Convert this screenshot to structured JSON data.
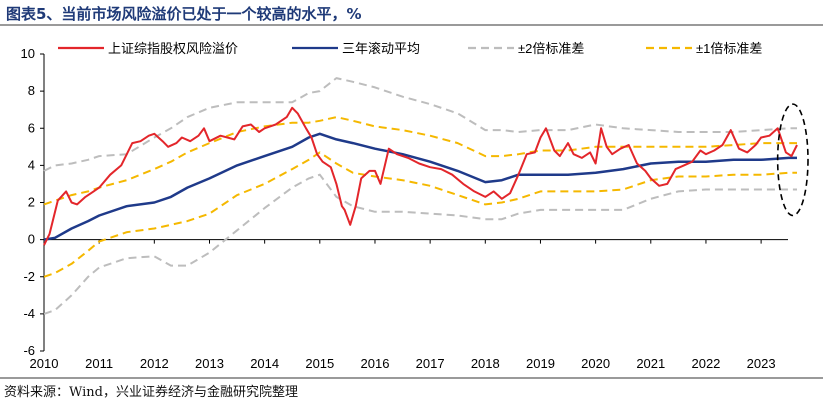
{
  "header": {
    "title": "图表5、当前市场风险溢价已处于一个较高的水平，%"
  },
  "footer": {
    "source": "资料来源：Wind，兴业证券经济与金融研究院整理"
  },
  "chart_data": {
    "type": "line",
    "title": "图表5、当前市场风险溢价已处于一个较高的水平，%",
    "xlabel": "",
    "ylabel": "",
    "xlim": [
      2010,
      2023.85
    ],
    "ylim": [
      -6,
      10
    ],
    "yticks": [
      -6,
      -4,
      -2,
      0,
      2,
      4,
      6,
      8,
      10
    ],
    "xticks": [
      2010,
      2011,
      2012,
      2013,
      2014,
      2015,
      2016,
      2017,
      2018,
      2019,
      2020,
      2021,
      2022,
      2023
    ],
    "grid": false,
    "legend": "top",
    "series": [
      {
        "name": "上证综指股权风险溢价",
        "color": "#e3262b",
        "style": "solid",
        "x": [
          2010.0,
          2010.1,
          2010.25,
          2010.4,
          2010.5,
          2010.6,
          2010.75,
          2010.9,
          2011.0,
          2011.2,
          2011.4,
          2011.6,
          2011.75,
          2011.9,
          2012.0,
          2012.15,
          2012.25,
          2012.4,
          2012.5,
          2012.65,
          2012.8,
          2012.9,
          2013.0,
          2013.2,
          2013.45,
          2013.6,
          2013.75,
          2013.9,
          2014.0,
          2014.2,
          2014.4,
          2014.5,
          2014.6,
          2014.75,
          2014.85,
          2014.95,
          2015.05,
          2015.2,
          2015.3,
          2015.4,
          2015.45,
          2015.55,
          2015.65,
          2015.75,
          2015.9,
          2016.0,
          2016.1,
          2016.25,
          2016.4,
          2016.6,
          2016.8,
          2017.0,
          2017.2,
          2017.4,
          2017.6,
          2017.8,
          2018.0,
          2018.15,
          2018.3,
          2018.45,
          2018.6,
          2018.75,
          2018.9,
          2019.0,
          2019.1,
          2019.25,
          2019.35,
          2019.5,
          2019.6,
          2019.75,
          2019.9,
          2020.0,
          2020.1,
          2020.2,
          2020.3,
          2020.45,
          2020.6,
          2020.75,
          2020.9,
          2021.0,
          2021.15,
          2021.3,
          2021.45,
          2021.6,
          2021.75,
          2021.9,
          2022.0,
          2022.15,
          2022.3,
          2022.45,
          2022.6,
          2022.75,
          2022.9,
          2023.0,
          2023.15,
          2023.3,
          2023.45,
          2023.55,
          2023.65
        ],
        "y": [
          -0.3,
          0.3,
          2.1,
          2.6,
          2.0,
          1.9,
          2.3,
          2.6,
          2.8,
          3.5,
          4.0,
          5.2,
          5.3,
          5.6,
          5.7,
          5.3,
          5.0,
          5.2,
          5.5,
          5.3,
          5.6,
          6.0,
          5.3,
          5.6,
          5.4,
          6.1,
          6.2,
          5.8,
          6.0,
          6.2,
          6.6,
          7.1,
          6.8,
          6.0,
          5.5,
          4.6,
          4.2,
          3.9,
          3.0,
          1.8,
          1.6,
          0.8,
          1.8,
          3.3,
          3.7,
          3.7,
          3.0,
          4.9,
          4.6,
          4.4,
          4.1,
          3.9,
          3.8,
          3.5,
          3.0,
          2.6,
          2.3,
          2.6,
          2.2,
          2.5,
          3.5,
          4.6,
          4.7,
          5.5,
          6.0,
          4.8,
          4.5,
          5.2,
          4.6,
          4.4,
          4.7,
          4.1,
          6.0,
          5.0,
          4.6,
          4.9,
          5.1,
          4.1,
          3.7,
          3.3,
          2.9,
          3.0,
          3.8,
          4.0,
          4.2,
          4.8,
          4.6,
          4.8,
          5.1,
          5.9,
          4.9,
          4.7,
          5.1,
          5.5,
          5.6,
          6.0,
          4.7,
          4.5,
          5.1
        ]
      },
      {
        "name": "三年滚动平均",
        "color": "#1f3a8a",
        "style": "solid",
        "x": [
          2010.0,
          2010.2,
          2010.5,
          2010.8,
          2011.0,
          2011.5,
          2012.0,
          2012.3,
          2012.6,
          2013.0,
          2013.5,
          2014.0,
          2014.5,
          2014.8,
          2015.0,
          2015.3,
          2015.6,
          2016.0,
          2016.5,
          2017.0,
          2017.5,
          2018.0,
          2018.3,
          2018.6,
          2019.0,
          2019.5,
          2020.0,
          2020.5,
          2021.0,
          2021.5,
          2022.0,
          2022.5,
          2023.0,
          2023.5,
          2023.65
        ],
        "y": [
          0.0,
          0.1,
          0.6,
          1.0,
          1.3,
          1.8,
          2.0,
          2.3,
          2.8,
          3.3,
          4.0,
          4.5,
          5.0,
          5.5,
          5.7,
          5.4,
          5.2,
          4.9,
          4.6,
          4.2,
          3.7,
          3.1,
          3.2,
          3.5,
          3.5,
          3.5,
          3.6,
          3.8,
          4.1,
          4.2,
          4.2,
          4.3,
          4.3,
          4.4,
          4.4
        ]
      },
      {
        "name": "±2倍标准差 上限",
        "color": "#bdbdbd",
        "style": "dashed",
        "x": [
          2010.0,
          2010.2,
          2010.5,
          2010.8,
          2011.0,
          2011.5,
          2012.0,
          2012.3,
          2012.6,
          2013.0,
          2013.5,
          2014.0,
          2014.5,
          2014.8,
          2015.0,
          2015.3,
          2015.6,
          2016.0,
          2016.5,
          2017.0,
          2017.5,
          2018.0,
          2018.3,
          2018.6,
          2019.0,
          2019.5,
          2020.0,
          2020.5,
          2021.0,
          2021.5,
          2022.0,
          2022.5,
          2023.0,
          2023.5,
          2023.65
        ],
        "y": [
          3.7,
          4.0,
          4.1,
          4.3,
          4.5,
          4.6,
          5.5,
          6.0,
          6.6,
          7.1,
          7.4,
          7.4,
          7.4,
          7.9,
          8.0,
          8.7,
          8.5,
          8.2,
          7.7,
          7.3,
          6.8,
          5.9,
          5.9,
          5.8,
          5.9,
          5.9,
          6.2,
          6.0,
          5.9,
          5.8,
          5.8,
          5.8,
          5.9,
          6.0,
          6.0
        ]
      },
      {
        "name": "±2倍标准差 下限",
        "color": "#bdbdbd",
        "style": "dashed",
        "x": [
          2010.0,
          2010.2,
          2010.5,
          2010.8,
          2011.0,
          2011.5,
          2012.0,
          2012.3,
          2012.6,
          2013.0,
          2013.5,
          2014.0,
          2014.5,
          2014.8,
          2015.0,
          2015.3,
          2015.6,
          2016.0,
          2016.5,
          2017.0,
          2017.5,
          2018.0,
          2018.3,
          2018.6,
          2019.0,
          2019.5,
          2020.0,
          2020.5,
          2021.0,
          2021.5,
          2022.0,
          2022.5,
          2023.0,
          2023.5,
          2023.65
        ],
        "y": [
          -4.0,
          -3.8,
          -3.0,
          -2.0,
          -1.5,
          -1.0,
          -0.9,
          -1.4,
          -1.4,
          -0.7,
          0.5,
          1.7,
          2.8,
          3.3,
          3.5,
          2.3,
          1.8,
          1.5,
          1.5,
          1.4,
          1.3,
          1.1,
          1.1,
          1.4,
          1.6,
          1.6,
          1.6,
          1.6,
          2.2,
          2.6,
          2.7,
          2.7,
          2.7,
          2.7,
          2.7
        ]
      },
      {
        "name": "±1倍标准差 上限",
        "color": "#f5b800",
        "style": "dashed",
        "x": [
          2010.0,
          2010.2,
          2010.5,
          2010.8,
          2011.0,
          2011.5,
          2012.0,
          2012.3,
          2012.6,
          2013.0,
          2013.5,
          2014.0,
          2014.5,
          2014.8,
          2015.0,
          2015.3,
          2015.6,
          2016.0,
          2016.5,
          2017.0,
          2017.5,
          2018.0,
          2018.3,
          2018.6,
          2019.0,
          2019.5,
          2020.0,
          2020.5,
          2021.0,
          2021.5,
          2022.0,
          2022.5,
          2023.0,
          2023.5,
          2023.65
        ],
        "y": [
          1.9,
          2.1,
          2.4,
          2.6,
          2.8,
          3.2,
          3.8,
          4.2,
          4.7,
          5.2,
          5.8,
          6.1,
          6.3,
          6.3,
          6.4,
          6.6,
          6.4,
          6.1,
          5.9,
          5.6,
          5.2,
          4.5,
          4.5,
          4.6,
          4.8,
          4.8,
          5.0,
          5.0,
          5.0,
          5.0,
          5.0,
          5.1,
          5.2,
          5.2,
          5.2
        ]
      },
      {
        "name": "±1倍标准差 下限",
        "color": "#f5b800",
        "style": "dashed",
        "x": [
          2010.0,
          2010.2,
          2010.5,
          2010.8,
          2011.0,
          2011.5,
          2012.0,
          2012.3,
          2012.6,
          2013.0,
          2013.5,
          2014.0,
          2014.5,
          2014.8,
          2015.0,
          2015.3,
          2015.6,
          2016.0,
          2016.5,
          2017.0,
          2017.5,
          2018.0,
          2018.3,
          2018.6,
          2019.0,
          2019.5,
          2020.0,
          2020.5,
          2021.0,
          2021.5,
          2022.0,
          2022.5,
          2023.0,
          2023.5,
          2023.65
        ],
        "y": [
          -2.0,
          -1.8,
          -1.3,
          -0.6,
          -0.1,
          0.4,
          0.6,
          0.8,
          1.0,
          1.4,
          2.4,
          3.0,
          3.8,
          4.3,
          4.7,
          4.1,
          3.6,
          3.4,
          3.2,
          2.9,
          2.4,
          1.9,
          2.0,
          2.2,
          2.6,
          2.6,
          2.6,
          2.7,
          3.2,
          3.4,
          3.4,
          3.5,
          3.5,
          3.6,
          3.6
        ]
      }
    ],
    "legend_entries": [
      {
        "label": "上证综指股权风险溢价",
        "color": "#e3262b",
        "style": "solid"
      },
      {
        "label": "三年滚动平均",
        "color": "#1f3a8a",
        "style": "solid"
      },
      {
        "label": "±2倍标准差",
        "color": "#bdbdbd",
        "style": "dashed"
      },
      {
        "label": "±1倍标准差",
        "color": "#f5b800",
        "style": "dashed"
      }
    ],
    "annotations": [
      {
        "type": "dashed-ellipse",
        "label": "",
        "color": "#000000",
        "x_range": [
          2023.3,
          2023.85
        ],
        "y_range": [
          1.3,
          7.3
        ]
      }
    ]
  }
}
